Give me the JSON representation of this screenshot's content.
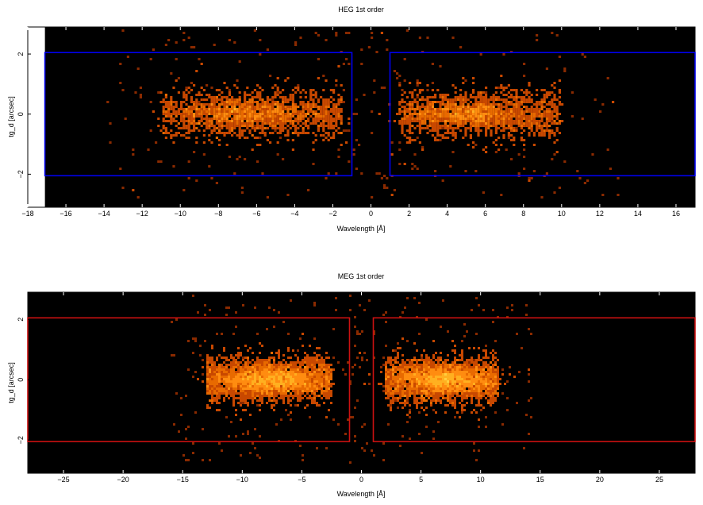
{
  "chart_data": [
    {
      "type": "heatmap",
      "title": "HEG 1st order",
      "xlabel": "Wavelength [Å]",
      "ylabel": "tg_d [arcsec]",
      "xlim": [
        -18,
        17
      ],
      "ylim": [
        -3.1,
        2.9
      ],
      "xticks": [
        -18,
        -16,
        -14,
        -12,
        -10,
        -8,
        -6,
        -4,
        -2,
        0,
        2,
        4,
        6,
        8,
        10,
        12,
        14,
        16
      ],
      "yticks": [
        -2,
        0,
        2
      ],
      "data_xmin": -17.1,
      "box_color": "#0000ee",
      "extraction_regions": [
        {
          "x": [
            -17.1,
            -1.0
          ],
          "y": [
            -2.05,
            2.05
          ]
        },
        {
          "x": [
            1.0,
            17.0
          ],
          "y": [
            -2.05,
            2.05
          ]
        }
      ],
      "sources": [
        {
          "x_range": [
            -11.0,
            -1.5
          ],
          "center": -6.5
        },
        {
          "x_range": [
            1.5,
            10.0
          ],
          "center": 5.0
        }
      ],
      "grid": false,
      "colormap": "heat"
    },
    {
      "type": "heatmap",
      "title": "MEG 1st order",
      "xlabel": "Wavelength [Å]",
      "ylabel": "tg_d [arcsec]",
      "xlim": [
        -28,
        28
      ],
      "ylim": [
        -3.1,
        2.9
      ],
      "xticks": [
        -25,
        -20,
        -15,
        -10,
        -5,
        0,
        5,
        10,
        15,
        20,
        25
      ],
      "yticks": [
        -2,
        0,
        2
      ],
      "data_xmin": -28,
      "box_color": "#cc1111",
      "extraction_regions": [
        {
          "x": [
            -28,
            -1.0
          ],
          "y": [
            -2.05,
            2.05
          ]
        },
        {
          "x": [
            1.0,
            28
          ],
          "y": [
            -2.05,
            2.05
          ]
        }
      ],
      "sources": [
        {
          "x_range": [
            -13.0,
            -2.5
          ],
          "center": -7.5
        },
        {
          "x_range": [
            2.0,
            11.5
          ],
          "center": 7.0
        }
      ],
      "grid": false,
      "colormap": "heat"
    }
  ]
}
